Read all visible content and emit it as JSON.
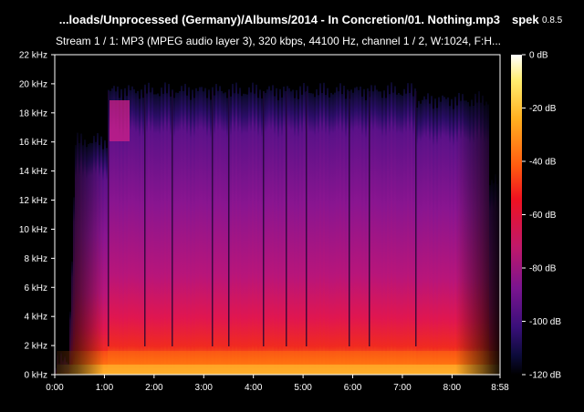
{
  "header": {
    "file_title": "...loads/Unprocessed (Germany)/Albums/2014 - In Concretion/01. Nothing.mp3",
    "app_name": "spek",
    "app_version": "0.8.5",
    "stream_info": "Stream 1 / 1: MP3 (MPEG audio layer 3), 320 kbps, 44100 Hz, channel 1 / 2, W:1024, F:H..."
  },
  "axes": {
    "frequency_labels": [
      "0 kHz",
      "2 kHz",
      "4 kHz",
      "6 kHz",
      "8 kHz",
      "10 kHz",
      "12 kHz",
      "14 kHz",
      "16 kHz",
      "18 kHz",
      "20 kHz",
      "22 kHz"
    ],
    "time_labels": [
      "0:00",
      "1:00",
      "2:00",
      "3:00",
      "4:00",
      "5:00",
      "6:00",
      "7:00",
      "8:00",
      "8:58"
    ],
    "db_labels": [
      "0 dB",
      "-20 dB",
      "-40 dB",
      "-60 dB",
      "-80 dB",
      "-100 dB",
      "-120 dB"
    ]
  },
  "colors": {
    "background": "#000000",
    "palette": [
      "#000000",
      "#0c0b3a",
      "#3a0f7a",
      "#7a148f",
      "#c0186a",
      "#f01220",
      "#ff5a10",
      "#ffb020",
      "#ffee70",
      "#ffffff"
    ]
  }
}
